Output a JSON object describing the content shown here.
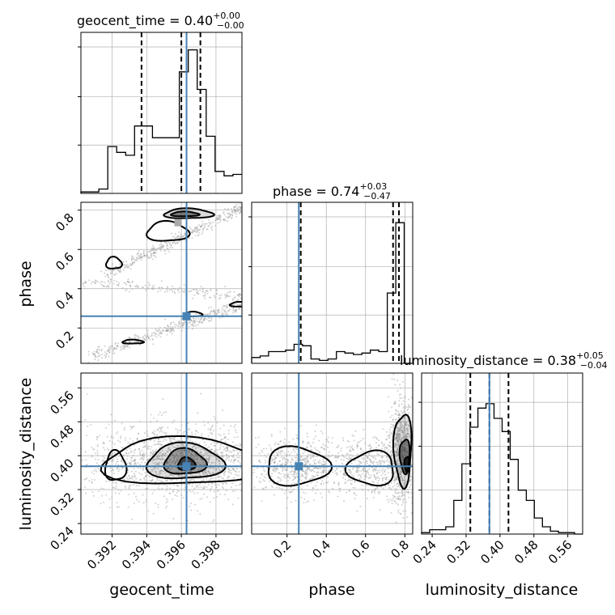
{
  "chart_data": {
    "type": "corner",
    "parameters": [
      "geocent_time",
      "phase",
      "luminosity_distance"
    ],
    "truth": {
      "geocent_time": 0.3963,
      "phase": 0.26,
      "luminosity_distance": 0.375
    },
    "colors": {
      "truth": "#4682b4",
      "hist": "#000000",
      "grid": "#b0b0b0",
      "samples": "#9a9a9a"
    },
    "grid": true,
    "panels": {
      "geocent_time": {
        "title": {
          "name": "geocent_time",
          "median": "0.40",
          "up": "+0.00",
          "down": "−0.00"
        },
        "range": [
          0.3902,
          0.3995
        ],
        "ticks": [
          0.392,
          0.394,
          0.396,
          0.398
        ],
        "tick_labels": [
          "0.392",
          "0.394",
          "0.396",
          "0.398"
        ],
        "quantiles": [
          0.3937,
          0.396,
          0.3971
        ],
        "hist": [
          0.01,
          0.01,
          0.03,
          0.32,
          0.28,
          0.26,
          0.46,
          0.46,
          0.38,
          0.38,
          0.38,
          0.83,
          0.98,
          0.71,
          0.39,
          0.15,
          0.12,
          0.13
        ],
        "hist_ticks": [
          0.33,
          0.66,
          1.0
        ]
      },
      "phase": {
        "title": {
          "name": "phase",
          "median": "0.74",
          "up": "+0.03",
          "down": "−0.47"
        },
        "range": [
          0.02,
          0.84
        ],
        "ticks": [
          0.2,
          0.4,
          0.6,
          0.8
        ],
        "tick_labels": [
          "0.2",
          "0.4",
          "0.6",
          "0.8"
        ],
        "quantiles": [
          0.27,
          0.74,
          0.77
        ],
        "hist": [
          0.04,
          0.05,
          0.08,
          0.08,
          0.09,
          0.13,
          0.12,
          0.03,
          0.02,
          0.03,
          0.08,
          0.07,
          0.06,
          0.07,
          0.09,
          0.08,
          0.48,
          0.96,
          0.0
        ],
        "hist_ticks": [
          0.33,
          0.66,
          1.0
        ]
      },
      "luminosity_distance": {
        "title": {
          "name": "luminosity_distance",
          "median": "0.38",
          "up": "+0.05",
          "down": "−0.04"
        },
        "range": [
          0.215,
          0.595
        ],
        "ticks": [
          0.24,
          0.32,
          0.4,
          0.48,
          0.56
        ],
        "tick_labels": [
          "0.24",
          "0.32",
          "0.40",
          "0.48",
          "0.56"
        ],
        "quantiles": [
          0.33,
          0.375,
          0.42
        ],
        "hist": [
          0.01,
          0.03,
          0.03,
          0.05,
          0.23,
          0.48,
          0.73,
          0.86,
          0.89,
          0.79,
          0.7,
          0.51,
          0.3,
          0.23,
          0.11,
          0.05,
          0.02,
          0.01,
          0.01,
          0.0
        ],
        "hist_ticks": [
          0.3,
          0.6,
          0.9
        ]
      }
    },
    "axis_labels": {
      "x": [
        "geocent_time",
        "phase",
        "luminosity_distance"
      ],
      "y": [
        "phase",
        "luminosity_distance"
      ]
    },
    "scatter": {
      "phase_vs_geocent_time": {
        "segments": [
          {
            "from": [
              0.3908,
              0.06
            ],
            "to": [
              0.3999,
              0.33
            ],
            "spread": 0.015,
            "n": 420
          },
          {
            "from": [
              0.3916,
              0.47
            ],
            "to": [
              0.3999,
              0.83
            ],
            "spread": 0.015,
            "n": 420
          },
          {
            "from": [
              0.39,
              0.44
            ],
            "to": [
              0.3999,
              0.36
            ],
            "spread": 0.012,
            "n": 200
          }
        ]
      },
      "luminosity_distance_vs_geocent_time": {
        "center": [
          0.3961,
          0.385
        ],
        "sx": 0.0028,
        "sy": 0.045,
        "n": 1600
      },
      "luminosity_distance_vs_phase": {
        "clusters": [
          {
            "center": [
              0.25,
              0.375
            ],
            "sx": 0.12,
            "sy": 0.035,
            "n": 600
          },
          {
            "center": [
              0.65,
              0.375
            ],
            "sx": 0.12,
            "sy": 0.035,
            "n": 500
          },
          {
            "center": [
              0.78,
              0.41
            ],
            "sx": 0.03,
            "sy": 0.06,
            "n": 700
          }
        ]
      }
    }
  }
}
